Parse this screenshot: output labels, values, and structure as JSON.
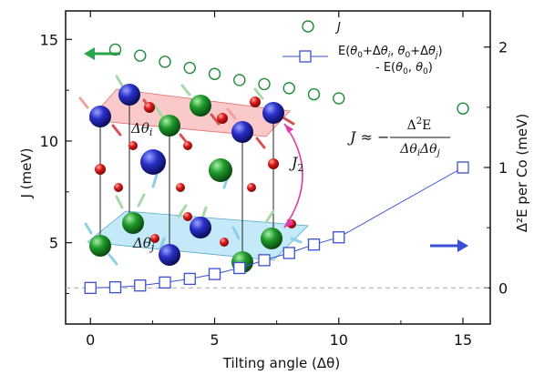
{
  "chart_data": {
    "type": "scatter",
    "x_ticks": [
      "0",
      "5",
      "10",
      "15"
    ],
    "y_left_ticks": [
      "5",
      "10",
      "15"
    ],
    "y_right_ticks": [
      "0",
      "1",
      "2"
    ],
    "xlabel": "Tilting angle (Δθ)",
    "ylabel_left": "J (meV)",
    "ylabel_right": "Δ²E per Co (meV)",
    "xlim": [
      -1,
      16.1
    ],
    "ylim_left": [
      1.0,
      16.4
    ],
    "ylim_right": [
      -0.3,
      2.3
    ],
    "series": [
      {
        "name": "J",
        "axis": "left",
        "marker": "circle",
        "color": "#1e8a3c",
        "x": [
          1,
          2,
          3,
          4,
          5,
          6,
          7,
          8,
          9,
          10,
          15
        ],
        "y": [
          14.5,
          14.2,
          13.9,
          13.6,
          13.3,
          13.0,
          12.8,
          12.6,
          12.3,
          12.1,
          11.6
        ]
      },
      {
        "name": "E(θ0+Δθi, θ0+Δθj) - E(θ0, θ0)",
        "axis": "right",
        "marker": "square",
        "color": "#3a4fd6",
        "x": [
          0,
          1,
          2,
          3,
          4,
          5,
          6,
          7,
          8,
          9,
          10,
          15
        ],
        "y": [
          0.0,
          0.005,
          0.02,
          0.045,
          0.075,
          0.115,
          0.165,
          0.23,
          0.29,
          0.36,
          0.42,
          1.0
        ]
      }
    ],
    "reference_line": {
      "axis": "right",
      "y": 0,
      "style": "dashed",
      "color": "#aaaaaa"
    },
    "legend": {
      "position": "top-right",
      "j_label": "J",
      "e_label_line1": "E(θ0+Δθi, θ0+Δθj)",
      "e_label_line2": "- E(θ0, θ0)"
    },
    "equation": {
      "lhs": "J ≈ −",
      "numerator": "Δ²E",
      "denominator": "ΔθiΔθj"
    },
    "inset_labels": {
      "upper": "Δθi",
      "lower": "Δθj",
      "coupling": "J2"
    }
  }
}
